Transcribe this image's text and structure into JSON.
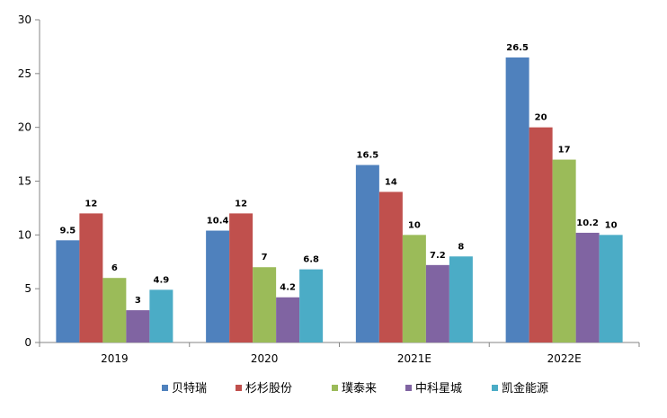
{
  "chart_data": {
    "type": "bar",
    "title": "",
    "xlabel": "",
    "ylabel": "",
    "categories": [
      "2019",
      "2020",
      "2021E",
      "2022E"
    ],
    "ylim": [
      0,
      30
    ],
    "yticks": [
      0,
      5,
      10,
      15,
      20,
      25,
      30
    ],
    "grid": false,
    "legend_position": "bottom",
    "series": [
      {
        "name": "贝特瑞",
        "color": "#4F81BD",
        "values": [
          9.5,
          10.4,
          16.5,
          26.5
        ]
      },
      {
        "name": "杉杉股份",
        "color": "#C0504D",
        "values": [
          12,
          12,
          14,
          20
        ]
      },
      {
        "name": "璞泰来",
        "color": "#9BBB59",
        "values": [
          6,
          7,
          10,
          17
        ]
      },
      {
        "name": "中科星城",
        "color": "#8064A2",
        "values": [
          3,
          4.2,
          7.2,
          10.2
        ]
      },
      {
        "name": "凯金能源",
        "color": "#4BACC6",
        "values": [
          4.9,
          6.8,
          8,
          10
        ]
      }
    ]
  }
}
